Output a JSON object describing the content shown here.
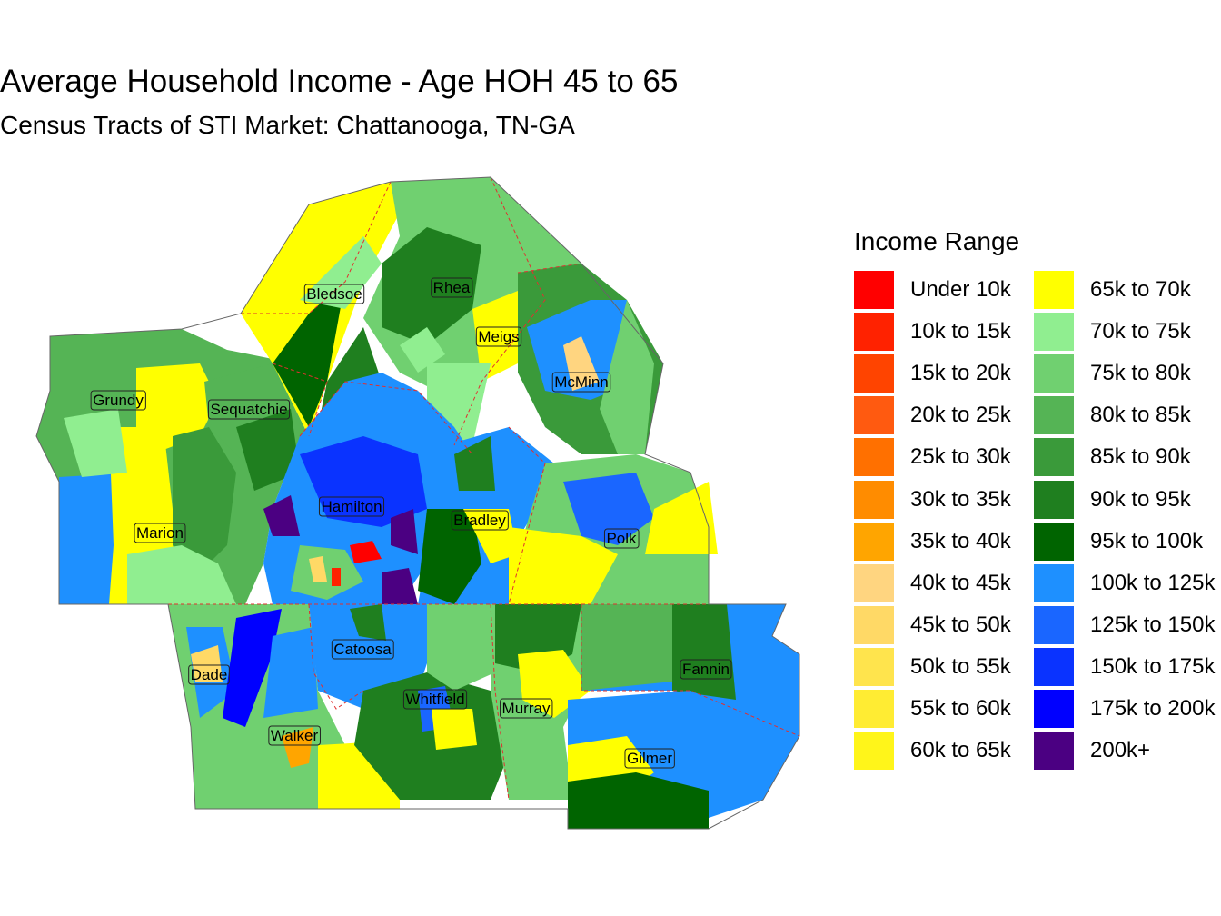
{
  "title": "Average Household Income - Age HOH 45 to 65",
  "subtitle": "Census Tracts of STI Market: Chattanooga, TN-GA",
  "legend": {
    "title": "Income Range",
    "items": [
      {
        "label": "Under 10k",
        "color": "#ff0000"
      },
      {
        "label": "10k to 15k",
        "color": "#ff2200"
      },
      {
        "label": "15k to 20k",
        "color": "#ff4400"
      },
      {
        "label": "20k to 25k",
        "color": "#ff5a10"
      },
      {
        "label": "25k to 30k",
        "color": "#ff7000"
      },
      {
        "label": "30k to 35k",
        "color": "#ff8c00"
      },
      {
        "label": "35k to 40k",
        "color": "#ffa500"
      },
      {
        "label": "40k to 45k",
        "color": "#ffd580"
      },
      {
        "label": "45k to 50k",
        "color": "#ffd966"
      },
      {
        "label": "50k to 55k",
        "color": "#ffe44d"
      },
      {
        "label": "55k to 60k",
        "color": "#ffec33"
      },
      {
        "label": "60k to 65k",
        "color": "#fff51a"
      },
      {
        "label": "65k to 70k",
        "color": "#ffff00"
      },
      {
        "label": "70k to 75k",
        "color": "#90ee90"
      },
      {
        "label": "75k to 80k",
        "color": "#70d070"
      },
      {
        "label": "80k to 85k",
        "color": "#55b455"
      },
      {
        "label": "85k to 90k",
        "color": "#3a9a3a"
      },
      {
        "label": "90k to 95k",
        "color": "#1f7f1f"
      },
      {
        "label": "95k to 100k",
        "color": "#006400"
      },
      {
        "label": "100k to 125k",
        "color": "#1e90ff"
      },
      {
        "label": "125k to 150k",
        "color": "#1a66ff"
      },
      {
        "label": "150k to 175k",
        "color": "#0a33ff"
      },
      {
        "label": "175k to 200k",
        "color": "#0000ff"
      },
      {
        "label": "200k+",
        "color": "#4b0082"
      }
    ]
  },
  "counties": [
    {
      "name": "Bledsoe"
    },
    {
      "name": "Rhea"
    },
    {
      "name": "Meigs"
    },
    {
      "name": "McMinn"
    },
    {
      "name": "Grundy"
    },
    {
      "name": "Sequatchie"
    },
    {
      "name": "Hamilton"
    },
    {
      "name": "Bradley"
    },
    {
      "name": "Marion"
    },
    {
      "name": "Polk"
    },
    {
      "name": "Catoosa"
    },
    {
      "name": "Fannin"
    },
    {
      "name": "Dade"
    },
    {
      "name": "Whitfield"
    },
    {
      "name": "Murray"
    },
    {
      "name": "Walker"
    },
    {
      "name": "Gilmer"
    }
  ]
}
